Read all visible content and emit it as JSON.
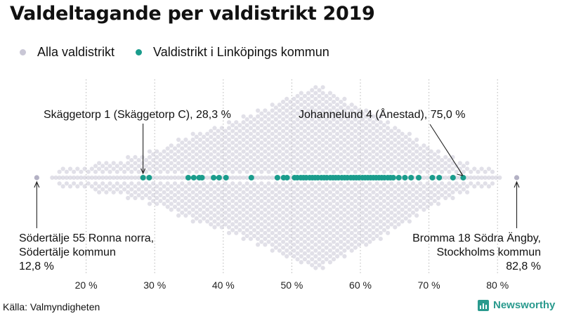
{
  "title": "Valdeltagande per valdistrikt 2019",
  "legend": [
    {
      "label": "Alla valdistrikt",
      "color": "#c9c7d6"
    },
    {
      "label": "Valdistrikt i Linköpings kommun",
      "color": "#1a9c8c"
    }
  ],
  "source": "Källa: Valmyndigheten",
  "brand": "Newsworthy",
  "chart_data": {
    "type": "scatter",
    "subtype": "beeswarm",
    "title": "Valdeltagande per valdistrikt 2019",
    "xlabel": "",
    "ylabel": "",
    "xlim": [
      10,
      85
    ],
    "x_ticks": [
      20,
      30,
      40,
      50,
      60,
      70,
      80
    ],
    "x_tick_labels": [
      "20 %",
      "30 %",
      "40 %",
      "50 %",
      "60 %",
      "70 %",
      "80 %"
    ],
    "grid": "vertical dotted",
    "series": [
      {
        "name": "Alla valdistrikt",
        "color": "#c9c7d6",
        "distribution": {
          "min": 12.8,
          "max": 82.8,
          "mode": 54,
          "max_column_count": 15,
          "density_points": [
            [
              12.8,
              0
            ],
            [
              18,
              0.06
            ],
            [
              25,
              0.15
            ],
            [
              30,
              0.25
            ],
            [
              35,
              0.42
            ],
            [
              40,
              0.55
            ],
            [
              45,
              0.7
            ],
            [
              50,
              0.88
            ],
            [
              54,
              1.0
            ],
            [
              58,
              0.83
            ],
            [
              62,
              0.68
            ],
            [
              66,
              0.5
            ],
            [
              70,
              0.3
            ],
            [
              75,
              0.12
            ],
            [
              78,
              0.05
            ],
            [
              82.8,
              0
            ]
          ]
        }
      },
      {
        "name": "Valdistrikt i Linköpings kommun",
        "color": "#1a9c8c",
        "values": [
          28.3,
          29.2,
          34.9,
          35.7,
          36.5,
          36.9,
          38.6,
          39.4,
          40.4,
          44.1,
          47.9,
          48.8,
          49.3,
          50.4,
          50.8,
          51.3,
          51.7,
          52.1,
          52.6,
          53.0,
          53.4,
          53.8,
          54.3,
          54.7,
          55.1,
          55.6,
          56.0,
          56.4,
          56.8,
          57.3,
          57.7,
          58.1,
          58.6,
          59.0,
          59.4,
          59.8,
          60.3,
          60.7,
          61.1,
          61.5,
          61.9,
          62.3,
          62.7,
          63.1,
          63.5,
          64.0,
          64.4,
          64.8,
          65.6,
          66.5,
          67.4,
          68.5,
          70.5,
          71.5,
          73.5,
          75.0
        ]
      }
    ],
    "annotations": [
      {
        "name": "min",
        "text_lines": [
          "Södertälje 55 Ronna norra,",
          "Södertälje kommun",
          "12,8 %"
        ],
        "value": 12.8,
        "align": "left"
      },
      {
        "name": "max",
        "text_lines": [
          "Bromma 18 Södra Ängby,",
          "Stockholms kommun",
          "82,8 %"
        ],
        "value": 82.8,
        "align": "right"
      },
      {
        "name": "linkoping-min",
        "text_lines": [
          "Skäggetorp 1 (Skäggetorp C), 28,3 %"
        ],
        "value": 28.3,
        "align": "left"
      },
      {
        "name": "linkoping-max",
        "text_lines": [
          "Johannelund 4 (Ånestad), 75,0 %"
        ],
        "value": 75.0,
        "align": "left"
      }
    ]
  }
}
